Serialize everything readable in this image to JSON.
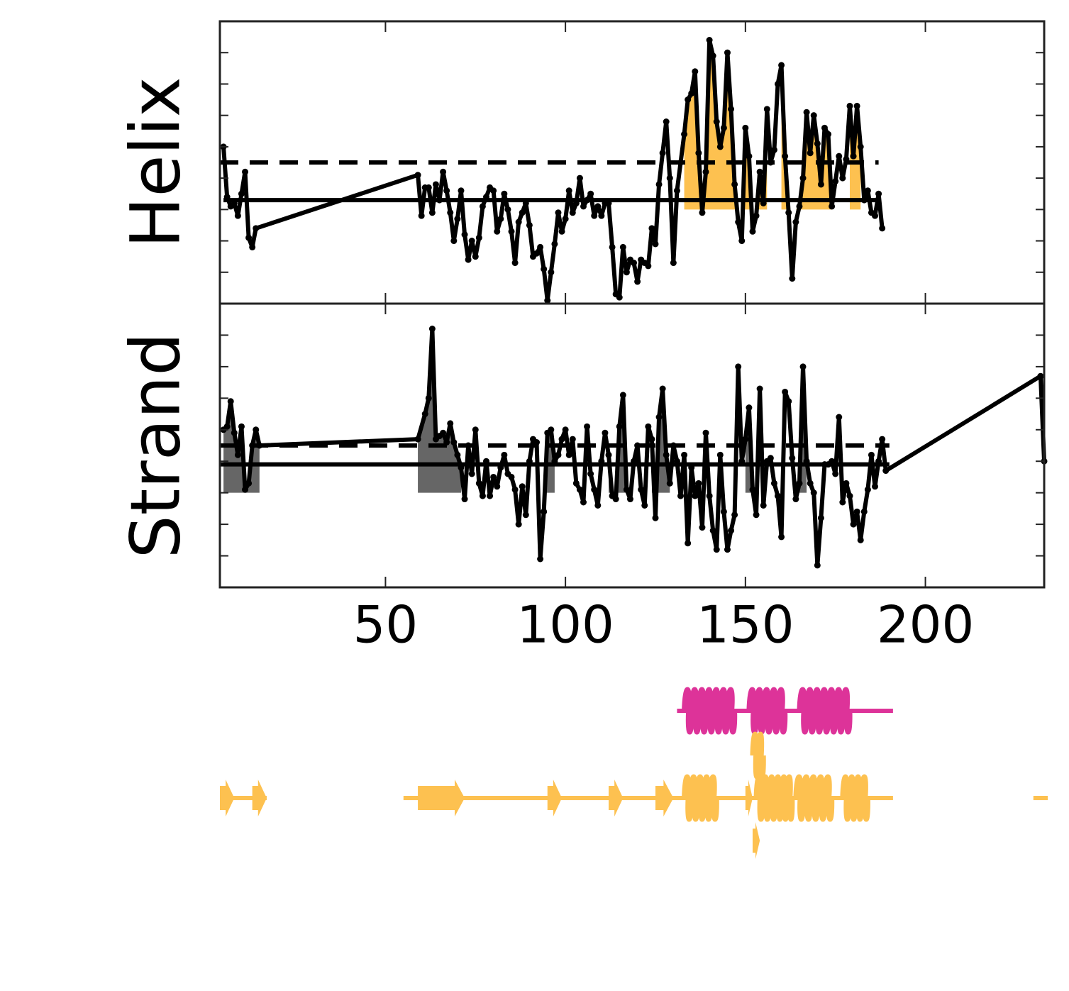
{
  "chart_data": [
    {
      "type": "line",
      "ylabel": "Helix",
      "xlim": [
        4,
        233
      ],
      "ylim": [
        0,
        9
      ],
      "xticks": [
        50,
        100,
        150,
        200
      ],
      "yticks": [
        1,
        2,
        3,
        4,
        5,
        6,
        7,
        8
      ],
      "series": [
        {
          "color": "#000000",
          "x": [
            5,
            6,
            7,
            8,
            9,
            10,
            11,
            12,
            13,
            14,
            59,
            60,
            61,
            62,
            63,
            64,
            65,
            66,
            67,
            68,
            69,
            70,
            71,
            72,
            73,
            74,
            75,
            76,
            77,
            78,
            79,
            80,
            81,
            82,
            83,
            84,
            85,
            86,
            87,
            88,
            89,
            90,
            91,
            92,
            93,
            94,
            95,
            96,
            97,
            98,
            99,
            100,
            101,
            102,
            103,
            104,
            105,
            106,
            107,
            108,
            109,
            110,
            111,
            112,
            113,
            114,
            115,
            116,
            117,
            118,
            119,
            120,
            121,
            122,
            123,
            124,
            125,
            126,
            127,
            128,
            129,
            130,
            131,
            132,
            133,
            134,
            135,
            136,
            137,
            138,
            139,
            140,
            141,
            142,
            143,
            144,
            145,
            146,
            147,
            148,
            149,
            150,
            151,
            152,
            153,
            154,
            155,
            156,
            157,
            158,
            159,
            160,
            161,
            162,
            163,
            164,
            165,
            166,
            167,
            168,
            169,
            170,
            171,
            172,
            173,
            174,
            175,
            176,
            177,
            178,
            179,
            180,
            181,
            182,
            183,
            184,
            185,
            186,
            187,
            188
          ],
          "values": [
            5.0,
            3.4,
            3.1,
            3.2,
            2.8,
            3.5,
            4.2,
            2.1,
            1.8,
            2.4,
            4.1,
            2.8,
            3.7,
            3.7,
            2.9,
            3.8,
            3.3,
            4.2,
            3.6,
            2.9,
            2.0,
            2.7,
            3.6,
            2.2,
            1.4,
            2.0,
            1.5,
            2.1,
            3.1,
            3.4,
            3.7,
            3.6,
            2.3,
            2.7,
            3.5,
            3.0,
            2.3,
            1.3,
            2.6,
            2.9,
            3.2,
            2.5,
            1.5,
            1.6,
            1.8,
            1.1,
            0.1,
            1.0,
            1.9,
            2.9,
            2.3,
            2.7,
            3.6,
            2.9,
            3.2,
            4.0,
            3.1,
            3.3,
            3.5,
            2.8,
            3.1,
            2.8,
            3.2,
            3.2,
            1.8,
            0.3,
            0.2,
            1.8,
            1.0,
            1.4,
            1.3,
            0.7,
            1.4,
            1.3,
            1.2,
            2.4,
            1.9,
            3.8,
            4.8,
            5.8,
            4.0,
            1.3,
            3.6,
            4.5,
            5.4,
            6.5,
            6.7,
            7.4,
            4.8,
            2.9,
            4.2,
            8.4,
            7.9,
            5.8,
            5.0,
            5.6,
            8.0,
            6.2,
            3.8,
            2.6,
            2.0,
            5.6,
            4.7,
            2.3,
            2.8,
            4.2,
            3.2,
            6.2,
            4.5,
            4.9,
            7.0,
            7.6,
            4.7,
            2.9,
            0.8,
            2.6,
            3.1,
            4.0,
            6.1,
            4.8,
            6.0,
            5.1,
            3.8,
            5.6,
            5.4,
            3.1,
            3.9,
            4.7,
            4.0,
            4.6,
            6.3,
            4.7,
            6.3,
            5.0,
            3.3,
            3.6,
            2.9,
            2.8,
            3.5,
            2.4
          ]
        }
      ],
      "reference_lines": [
        {
          "value": 3.3,
          "style": "solid",
          "start": 5,
          "end": 187
        },
        {
          "value": 4.5,
          "style": "dashed",
          "start": 4,
          "end": 187
        }
      ],
      "fill_base": 3.0,
      "fill_color": "#fdc150",
      "fill_regions": [
        [
          133,
          156
        ],
        [
          160,
          174
        ],
        [
          179,
          182
        ]
      ]
    },
    {
      "type": "line",
      "ylabel": "Strand",
      "xlim": [
        4,
        233
      ],
      "ylim": [
        0,
        9
      ],
      "xticks": [
        50,
        100,
        150,
        200
      ],
      "yticks": [
        1,
        2,
        3,
        4,
        5,
        6,
        7,
        8
      ],
      "series": [
        {
          "color": "#000000",
          "x": [
            5,
            6,
            7,
            8,
            9,
            10,
            11,
            12,
            13,
            14,
            15,
            59,
            61,
            62,
            63,
            64,
            65,
            66,
            67,
            68,
            69,
            70,
            71,
            72,
            73,
            74,
            75,
            76,
            77,
            78,
            79,
            80,
            81,
            82,
            83,
            84,
            85,
            86,
            87,
            88,
            89,
            90,
            91,
            92,
            93,
            94,
            95,
            96,
            97,
            98,
            99,
            100,
            101,
            102,
            103,
            104,
            105,
            106,
            107,
            108,
            109,
            110,
            111,
            112,
            113,
            114,
            115,
            116,
            117,
            118,
            119,
            120,
            121,
            122,
            123,
            124,
            125,
            126,
            127,
            128,
            129,
            130,
            131,
            132,
            133,
            134,
            135,
            136,
            137,
            138,
            139,
            140,
            141,
            142,
            143,
            144,
            145,
            146,
            147,
            148,
            149,
            150,
            151,
            152,
            153,
            154,
            155,
            156,
            157,
            158,
            159,
            160,
            161,
            162,
            163,
            164,
            165,
            166,
            167,
            168,
            169,
            170,
            171,
            172,
            173,
            174,
            175,
            176,
            177,
            178,
            179,
            180,
            181,
            182,
            183,
            184,
            185,
            186,
            187,
            188,
            189,
            232,
            233
          ],
          "values": [
            5.0,
            5.1,
            5.9,
            4.9,
            4.2,
            5.1,
            3.1,
            3.3,
            4.5,
            5.0,
            4.5,
            4.7,
            5.5,
            6.0,
            8.2,
            4.7,
            4.8,
            4.9,
            4.6,
            5.2,
            4.6,
            4.2,
            3.8,
            2.8,
            4.5,
            3.6,
            5.0,
            3.3,
            2.9,
            4.0,
            2.9,
            3.5,
            3.2,
            3.8,
            4.2,
            3.6,
            3.5,
            3.1,
            2.0,
            3.2,
            2.3,
            4.0,
            4.7,
            4.6,
            0.9,
            2.4,
            4.9,
            5.0,
            4.0,
            4.2,
            4.7,
            5.0,
            4.2,
            4.7,
            3.3,
            3.1,
            2.7,
            5.1,
            3.6,
            3.1,
            2.6,
            4.0,
            4.9,
            4.2,
            2.9,
            2.8,
            5.1,
            6.1,
            3.1,
            2.8,
            4.0,
            4.5,
            3.1,
            2.6,
            5.1,
            4.7,
            2.2,
            5.4,
            6.3,
            4.2,
            3.3,
            4.5,
            4.0,
            2.9,
            4.2,
            1.4,
            3.8,
            2.9,
            3.3,
            1.9,
            4.9,
            2.9,
            1.8,
            1.2,
            4.2,
            2.4,
            1.2,
            1.8,
            2.3,
            7.0,
            4.0,
            4.7,
            5.7,
            3.1,
            2.3,
            6.3,
            2.6,
            4.0,
            4.1,
            3.3,
            2.9,
            1.6,
            6.2,
            5.9,
            4.1,
            2.8,
            3.3,
            7.0,
            4.0,
            3.3,
            3.0,
            0.7,
            2.2,
            3.9,
            3.9,
            4.0,
            3.6,
            5.4,
            2.7,
            3.3,
            2.9,
            2.0,
            2.4,
            1.5,
            2.4,
            3.1,
            4.2,
            3.2,
            4.0,
            4.7,
            3.7,
            6.7,
            4.0
          ]
        }
      ],
      "reference_lines": [
        {
          "value": 3.9,
          "style": "solid",
          "start": 4,
          "end": 190
        },
        {
          "value": 4.5,
          "style": "dashed",
          "start": 4,
          "end": 190
        }
      ],
      "fill_base": 3.0,
      "fill_color": "#666666",
      "fill_regions": [
        [
          5,
          15
        ],
        [
          59,
          71
        ],
        [
          94,
          97
        ],
        [
          112,
          117
        ],
        [
          124,
          129
        ],
        [
          150,
          152
        ],
        [
          164,
          167
        ]
      ]
    },
    {
      "type": "track",
      "xlim": [
        4,
        233
      ],
      "rows": [
        {
          "color": "#dd3399",
          "lines": [
            [
              131,
              191
            ]
          ],
          "helices": [
            [
              133,
              147
            ],
            [
              151,
              161
            ],
            [
              165,
              179
            ]
          ],
          "strands": []
        },
        {
          "color": "#fdc150",
          "lines": [],
          "helices": [
            [
              152,
              155
            ]
          ],
          "strands": []
        },
        {
          "color": "#fdc150",
          "lines": [
            [
              4,
              17
            ],
            [
              55,
              191
            ],
            [
              230,
              234
            ]
          ],
          "helices": [
            [
              133,
              142
            ],
            [
              153,
              160
            ],
            [
              160,
              163
            ],
            [
              164,
              174
            ],
            [
              177,
              184
            ]
          ],
          "strands": [
            [
              4,
              8
            ],
            [
              13,
              17
            ],
            [
              59,
              72
            ],
            [
              95,
              99
            ],
            [
              112,
              116
            ],
            [
              125,
              130
            ],
            [
              150,
              152
            ]
          ]
        },
        {
          "color": "#fdc150",
          "lines": [],
          "helices": [],
          "strands": [
            [
              152,
              154
            ]
          ]
        }
      ]
    }
  ]
}
